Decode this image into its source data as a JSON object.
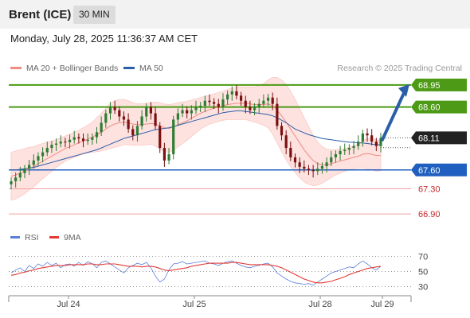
{
  "header": {
    "instrument": "Brent (ICE)",
    "interval": "30 MIN",
    "datetime": "Monday, July 28, 2025 11:36:37 AM CET"
  },
  "legend": {
    "ma20": {
      "label": "MA 20 + Bollinger Bands",
      "color": "#f28b82"
    },
    "ma50": {
      "label": "MA 50",
      "color": "#2a5ea8"
    },
    "credit": "Research © 2025 Trading Central"
  },
  "rsi_legend": {
    "rsi": {
      "label": "RSI",
      "color": "#5b7fd8"
    },
    "ma9": {
      "label": "9MA",
      "color": "#e53935"
    }
  },
  "colors": {
    "up": "#2e7d32",
    "down": "#7a1010",
    "resistance": "#4c9a15",
    "support": "#1f5fbf",
    "support_light": "#f2a0a0",
    "support_text": "#c62828",
    "band_fill": "#fde2e0",
    "arrow": "#2a5ea8"
  },
  "chart_data": [
    {
      "type": "candlestick",
      "title": "Brent (ICE)",
      "ylim": [
        66.7,
        69.05
      ],
      "x_ticks": [
        "Jul 24",
        "Jul 25",
        "Jul 28",
        "Jul 29"
      ],
      "levels": [
        {
          "value": 68.95,
          "label": "68.95",
          "kind": "resistance"
        },
        {
          "value": 68.6,
          "label": "68.60",
          "kind": "resistance"
        },
        {
          "value": 68.11,
          "label": "68.11",
          "kind": "last"
        },
        {
          "value": 67.6,
          "label": "67.60",
          "kind": "pivot"
        },
        {
          "value": 67.3,
          "label": "67.30",
          "kind": "support"
        },
        {
          "value": 66.9,
          "label": "66.90",
          "kind": "support"
        }
      ],
      "close": [
        67.42,
        67.48,
        67.55,
        67.62,
        67.68,
        67.75,
        67.82,
        67.88,
        67.95,
        68.0,
        68.02,
        68.05,
        68.04,
        68.08,
        68.12,
        68.1,
        68.06,
        68.08,
        68.12,
        68.2,
        68.35,
        68.5,
        68.6,
        68.55,
        68.45,
        68.4,
        68.25,
        68.15,
        68.3,
        68.45,
        68.6,
        68.5,
        68.3,
        67.95,
        67.75,
        67.85,
        68.4,
        68.5,
        68.55,
        68.5,
        68.55,
        68.6,
        68.62,
        68.7,
        68.68,
        68.65,
        68.6,
        68.72,
        68.8,
        68.85,
        68.78,
        68.7,
        68.6,
        68.55,
        68.6,
        68.65,
        68.7,
        68.75,
        68.65,
        68.3,
        68.15,
        67.95,
        67.8,
        67.72,
        67.65,
        67.62,
        67.6,
        67.58,
        67.62,
        67.66,
        67.72,
        67.8,
        67.85,
        67.9,
        67.92,
        67.95,
        67.98,
        68.05,
        68.18,
        68.15,
        68.05,
        67.98,
        68.11
      ],
      "ma20": [
        67.5,
        67.52,
        67.55,
        67.58,
        67.62,
        67.65,
        67.7,
        67.74,
        67.78,
        67.82,
        67.86,
        67.9,
        67.94,
        67.97,
        68.0,
        68.03,
        68.06,
        68.09,
        68.12,
        68.16,
        68.2,
        68.25,
        68.3,
        68.33,
        68.35,
        68.36,
        68.35,
        68.33,
        68.32,
        68.32,
        68.33,
        68.34,
        68.33,
        68.3,
        68.27,
        68.26,
        68.28,
        68.32,
        68.35,
        68.38,
        68.42,
        68.46,
        68.5,
        68.53,
        68.56,
        68.58,
        68.6,
        68.62,
        68.64,
        68.65,
        68.66,
        68.66,
        68.66,
        68.65,
        68.64,
        68.64,
        68.64,
        68.65,
        68.62,
        68.55,
        68.46,
        68.36,
        68.25,
        68.14,
        68.03,
        67.92,
        67.83,
        67.75,
        67.7,
        67.68,
        67.68,
        67.7,
        67.72,
        67.74,
        67.76,
        67.78,
        67.8,
        67.82,
        67.85,
        67.86,
        67.85,
        67.83,
        67.83
      ],
      "ma50": [
        67.6,
        67.6,
        67.61,
        67.62,
        67.63,
        67.64,
        67.66,
        67.68,
        67.7,
        67.72,
        67.74,
        67.76,
        67.78,
        67.8,
        67.82,
        67.84,
        67.86,
        67.88,
        67.9,
        67.92,
        67.95,
        67.98,
        68.01,
        68.04,
        68.07,
        68.1,
        68.12,
        68.14,
        68.16,
        68.18,
        68.2,
        68.22,
        68.24,
        68.25,
        68.26,
        68.27,
        68.29,
        68.31,
        68.33,
        68.35,
        68.37,
        68.39,
        68.41,
        68.43,
        68.45,
        68.47,
        68.49,
        68.51,
        68.52,
        68.53,
        68.54,
        68.54,
        68.53,
        68.52,
        68.51,
        68.5,
        68.49,
        68.48,
        68.46,
        68.43,
        68.39,
        68.35,
        68.3,
        68.25,
        68.22,
        68.19,
        68.16,
        68.14,
        68.12,
        68.1,
        68.09,
        68.08,
        68.07,
        68.06,
        68.05,
        68.04,
        68.04,
        68.03,
        68.03,
        68.02,
        68.01,
        68.0,
        68.0
      ],
      "band_width": [
        0.38,
        0.38,
        0.37,
        0.36,
        0.34,
        0.32,
        0.3,
        0.28,
        0.26,
        0.24,
        0.22,
        0.21,
        0.2,
        0.2,
        0.2,
        0.2,
        0.21,
        0.22,
        0.24,
        0.27,
        0.3,
        0.33,
        0.36,
        0.37,
        0.37,
        0.36,
        0.35,
        0.34,
        0.33,
        0.33,
        0.33,
        0.33,
        0.35,
        0.37,
        0.38,
        0.38,
        0.37,
        0.35,
        0.33,
        0.31,
        0.29,
        0.27,
        0.25,
        0.24,
        0.23,
        0.23,
        0.23,
        0.23,
        0.24,
        0.25,
        0.26,
        0.26,
        0.26,
        0.27,
        0.28,
        0.3,
        0.33,
        0.38,
        0.45,
        0.52,
        0.57,
        0.6,
        0.6,
        0.58,
        0.55,
        0.51,
        0.46,
        0.4,
        0.34,
        0.29,
        0.25,
        0.22,
        0.2,
        0.19,
        0.18,
        0.18,
        0.18,
        0.19,
        0.22,
        0.24,
        0.25,
        0.25,
        0.24
      ]
    },
    {
      "type": "line",
      "title": "RSI",
      "ylim": [
        20,
        80
      ],
      "y_ticks": [
        70,
        50,
        30
      ],
      "series": [
        {
          "name": "RSI",
          "values": [
            48,
            52,
            55,
            50,
            58,
            54,
            60,
            57,
            62,
            58,
            61,
            55,
            59,
            60,
            57,
            62,
            58,
            63,
            60,
            55,
            62,
            64,
            60,
            56,
            52,
            48,
            55,
            58,
            61,
            59,
            62,
            55,
            44,
            36,
            40,
            52,
            60,
            61,
            63,
            60,
            61,
            62,
            63,
            64,
            61,
            60,
            58,
            61,
            63,
            64,
            61,
            58,
            56,
            55,
            57,
            58,
            60,
            61,
            56,
            48,
            44,
            40,
            37,
            35,
            34,
            33,
            34,
            32,
            36,
            40,
            44,
            48,
            50,
            52,
            54,
            56,
            55,
            60,
            64,
            60,
            55,
            52,
            57
          ]
        },
        {
          "name": "9MA",
          "values": [
            45,
            46,
            48,
            49,
            51,
            52,
            54,
            55,
            56,
            57,
            58,
            58,
            58,
            59,
            59,
            59,
            59,
            60,
            60,
            59,
            59,
            60,
            60,
            60,
            59,
            58,
            57,
            57,
            57,
            56,
            57,
            57,
            56,
            54,
            52,
            51,
            52,
            53,
            54,
            55,
            57,
            58,
            59,
            60,
            61,
            61,
            61,
            61,
            61,
            62,
            62,
            61,
            60,
            59,
            59,
            59,
            59,
            59,
            58,
            57,
            55,
            52,
            49,
            46,
            43,
            40,
            38,
            36,
            35,
            35,
            36,
            37,
            39,
            41,
            43,
            46,
            48,
            50,
            52,
            54,
            55,
            56,
            57
          ]
        }
      ]
    }
  ]
}
